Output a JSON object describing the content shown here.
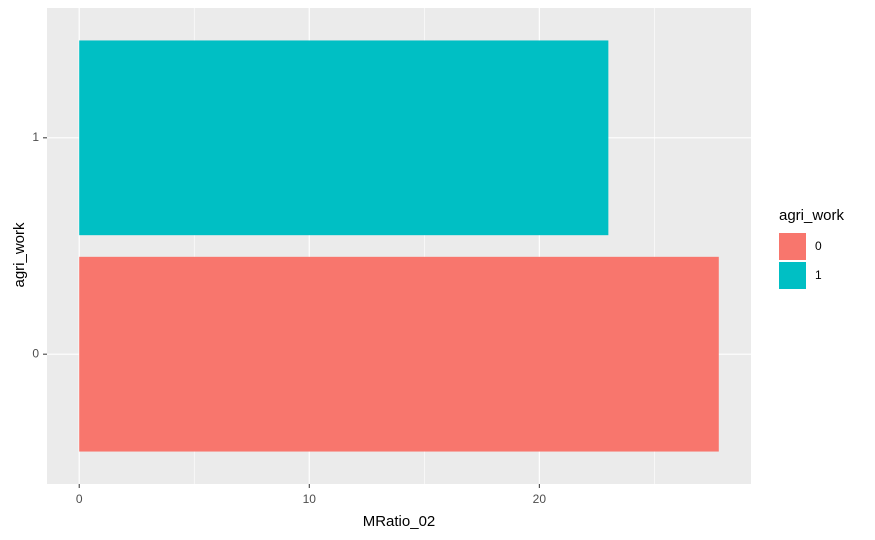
{
  "chart_data": {
    "type": "barh",
    "xlabel": "MRatio_02",
    "ylabel": "agri_work",
    "legend_title": "agri_work",
    "categories": [
      "0",
      "1"
    ],
    "values": [
      27.8,
      23
    ],
    "colors": [
      "#F8766D",
      "#00BFC4"
    ],
    "xlim": [
      -1.4,
      29.2
    ],
    "xticks": [
      0,
      10,
      20
    ],
    "x_minor_ticks": [
      5,
      15,
      25
    ],
    "grid": true
  }
}
